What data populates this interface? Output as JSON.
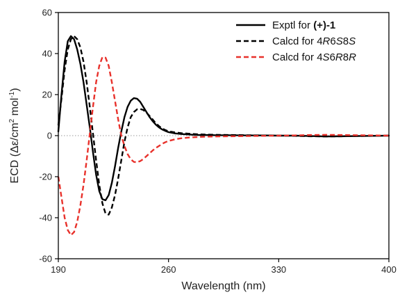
{
  "chart_data": {
    "type": "line",
    "xlabel": "Wavelength (nm)",
    "ylabel_parts": {
      "lead": "ECD (",
      "delta_eps": "Δε",
      "unit_a": "/cm",
      "sup_a": "2",
      "unit_b": " mol",
      "sup_b": "-1",
      "tail": ")"
    },
    "xlim": [
      190,
      400
    ],
    "ylim": [
      -60,
      60
    ],
    "xticks": [
      190,
      260,
      330,
      400
    ],
    "yticks": [
      -60,
      -40,
      -20,
      0,
      20,
      40,
      60
    ],
    "zero_line": true,
    "legend_position": "top-right",
    "series": [
      {
        "name_parts": [
          {
            "text": "Exptl  for ",
            "style": "normal"
          },
          {
            "text": "(+)-1",
            "style": "bold"
          }
        ],
        "color": "#000000",
        "dash": "solid",
        "x": [
          190,
          192,
          194,
          196,
          198,
          200,
          202,
          204,
          206,
          208,
          210,
          212,
          214,
          216,
          218,
          220,
          222,
          224,
          226,
          228,
          230,
          232,
          234,
          236,
          238,
          240,
          242,
          244,
          246,
          248,
          250,
          252,
          254,
          256,
          258,
          260,
          264,
          268,
          272,
          276,
          280,
          285,
          290,
          300,
          310,
          320,
          330,
          340,
          350,
          360,
          370,
          380,
          390,
          400
        ],
        "y": [
          2,
          20,
          36,
          46,
          48.5,
          47,
          42,
          35,
          26,
          15,
          4,
          -8,
          -19,
          -27,
          -31,
          -31.5,
          -29,
          -23,
          -15,
          -6,
          2,
          9,
          14,
          17,
          18.3,
          18,
          16.5,
          14,
          11.5,
          9,
          7,
          5.3,
          4,
          3,
          2.3,
          1.7,
          1.1,
          0.8,
          0.6,
          0.4,
          0.3,
          0.3,
          0.2,
          0.2,
          0.1,
          0.1,
          0,
          0,
          -0.2,
          -0.4,
          -0.3,
          -0.2,
          -0.1,
          0
        ]
      },
      {
        "name_parts": [
          {
            "text": "Calcd for 4",
            "style": "normal"
          },
          {
            "text": "R",
            "style": "italic"
          },
          {
            "text": "6",
            "style": "normal"
          },
          {
            "text": "S",
            "style": "italic"
          },
          {
            "text": "8",
            "style": "normal"
          },
          {
            "text": "S",
            "style": "italic"
          }
        ],
        "color": "#000000",
        "dash": "dashed",
        "x": [
          190,
          192,
          194,
          196,
          198,
          200,
          202,
          204,
          206,
          208,
          210,
          212,
          214,
          216,
          218,
          220,
          222,
          224,
          226,
          228,
          230,
          232,
          234,
          236,
          238,
          240,
          242,
          244,
          246,
          248,
          250,
          252,
          254,
          256,
          258,
          260,
          264,
          268,
          272,
          276,
          280,
          285,
          290,
          300,
          310,
          320,
          330,
          340,
          350,
          360,
          370,
          380,
          390,
          400
        ],
        "y": [
          5,
          18,
          32,
          42,
          47,
          48.5,
          47,
          43,
          36,
          26,
          14,
          1,
          -12,
          -24,
          -33,
          -38,
          -38.5,
          -35,
          -29,
          -21,
          -12,
          -3,
          4,
          9,
          11.5,
          12.8,
          13,
          12.5,
          11.2,
          9.5,
          7.8,
          6,
          4.6,
          3.5,
          2.7,
          2.1,
          1.6,
          1.2,
          1,
          0.8,
          0.6,
          0.5,
          0.4,
          0.3,
          0.2,
          0.1,
          0,
          -0.1,
          -0.3,
          -0.4,
          -0.3,
          -0.2,
          -0.1,
          0
        ]
      },
      {
        "name_parts": [
          {
            "text": "Calcd for 4",
            "style": "normal"
          },
          {
            "text": "S",
            "style": "italic"
          },
          {
            "text": "6",
            "style": "normal"
          },
          {
            "text": "R",
            "style": "italic"
          },
          {
            "text": "8",
            "style": "normal"
          },
          {
            "text": "R",
            "style": "italic"
          }
        ],
        "color": "#e8312b",
        "dash": "dashed",
        "x": [
          190,
          192,
          194,
          196,
          198,
          200,
          202,
          204,
          206,
          208,
          210,
          212,
          214,
          216,
          218,
          220,
          222,
          224,
          226,
          228,
          230,
          232,
          234,
          236,
          238,
          240,
          242,
          244,
          246,
          248,
          250,
          252,
          254,
          256,
          258,
          260,
          264,
          268,
          272,
          276,
          280,
          285,
          290,
          300,
          310,
          320,
          330,
          340,
          350,
          360,
          370,
          380,
          390,
          400
        ],
        "y": [
          -20,
          -30,
          -40,
          -46,
          -48.5,
          -47,
          -42,
          -34,
          -24,
          -12,
          1,
          14,
          26,
          34,
          38.3,
          38,
          34,
          26,
          17,
          8,
          0,
          -5,
          -9,
          -11.5,
          -12.8,
          -13,
          -12.4,
          -11.4,
          -10,
          -8.6,
          -7.2,
          -6,
          -5,
          -4,
          -3.2,
          -2.6,
          -1.8,
          -1.3,
          -1,
          -0.8,
          -0.6,
          -0.5,
          -0.4,
          -0.3,
          -0.2,
          -0.1,
          0,
          0.1,
          0.3,
          0.4,
          0.3,
          0.2,
          0.1,
          0
        ]
      }
    ]
  }
}
